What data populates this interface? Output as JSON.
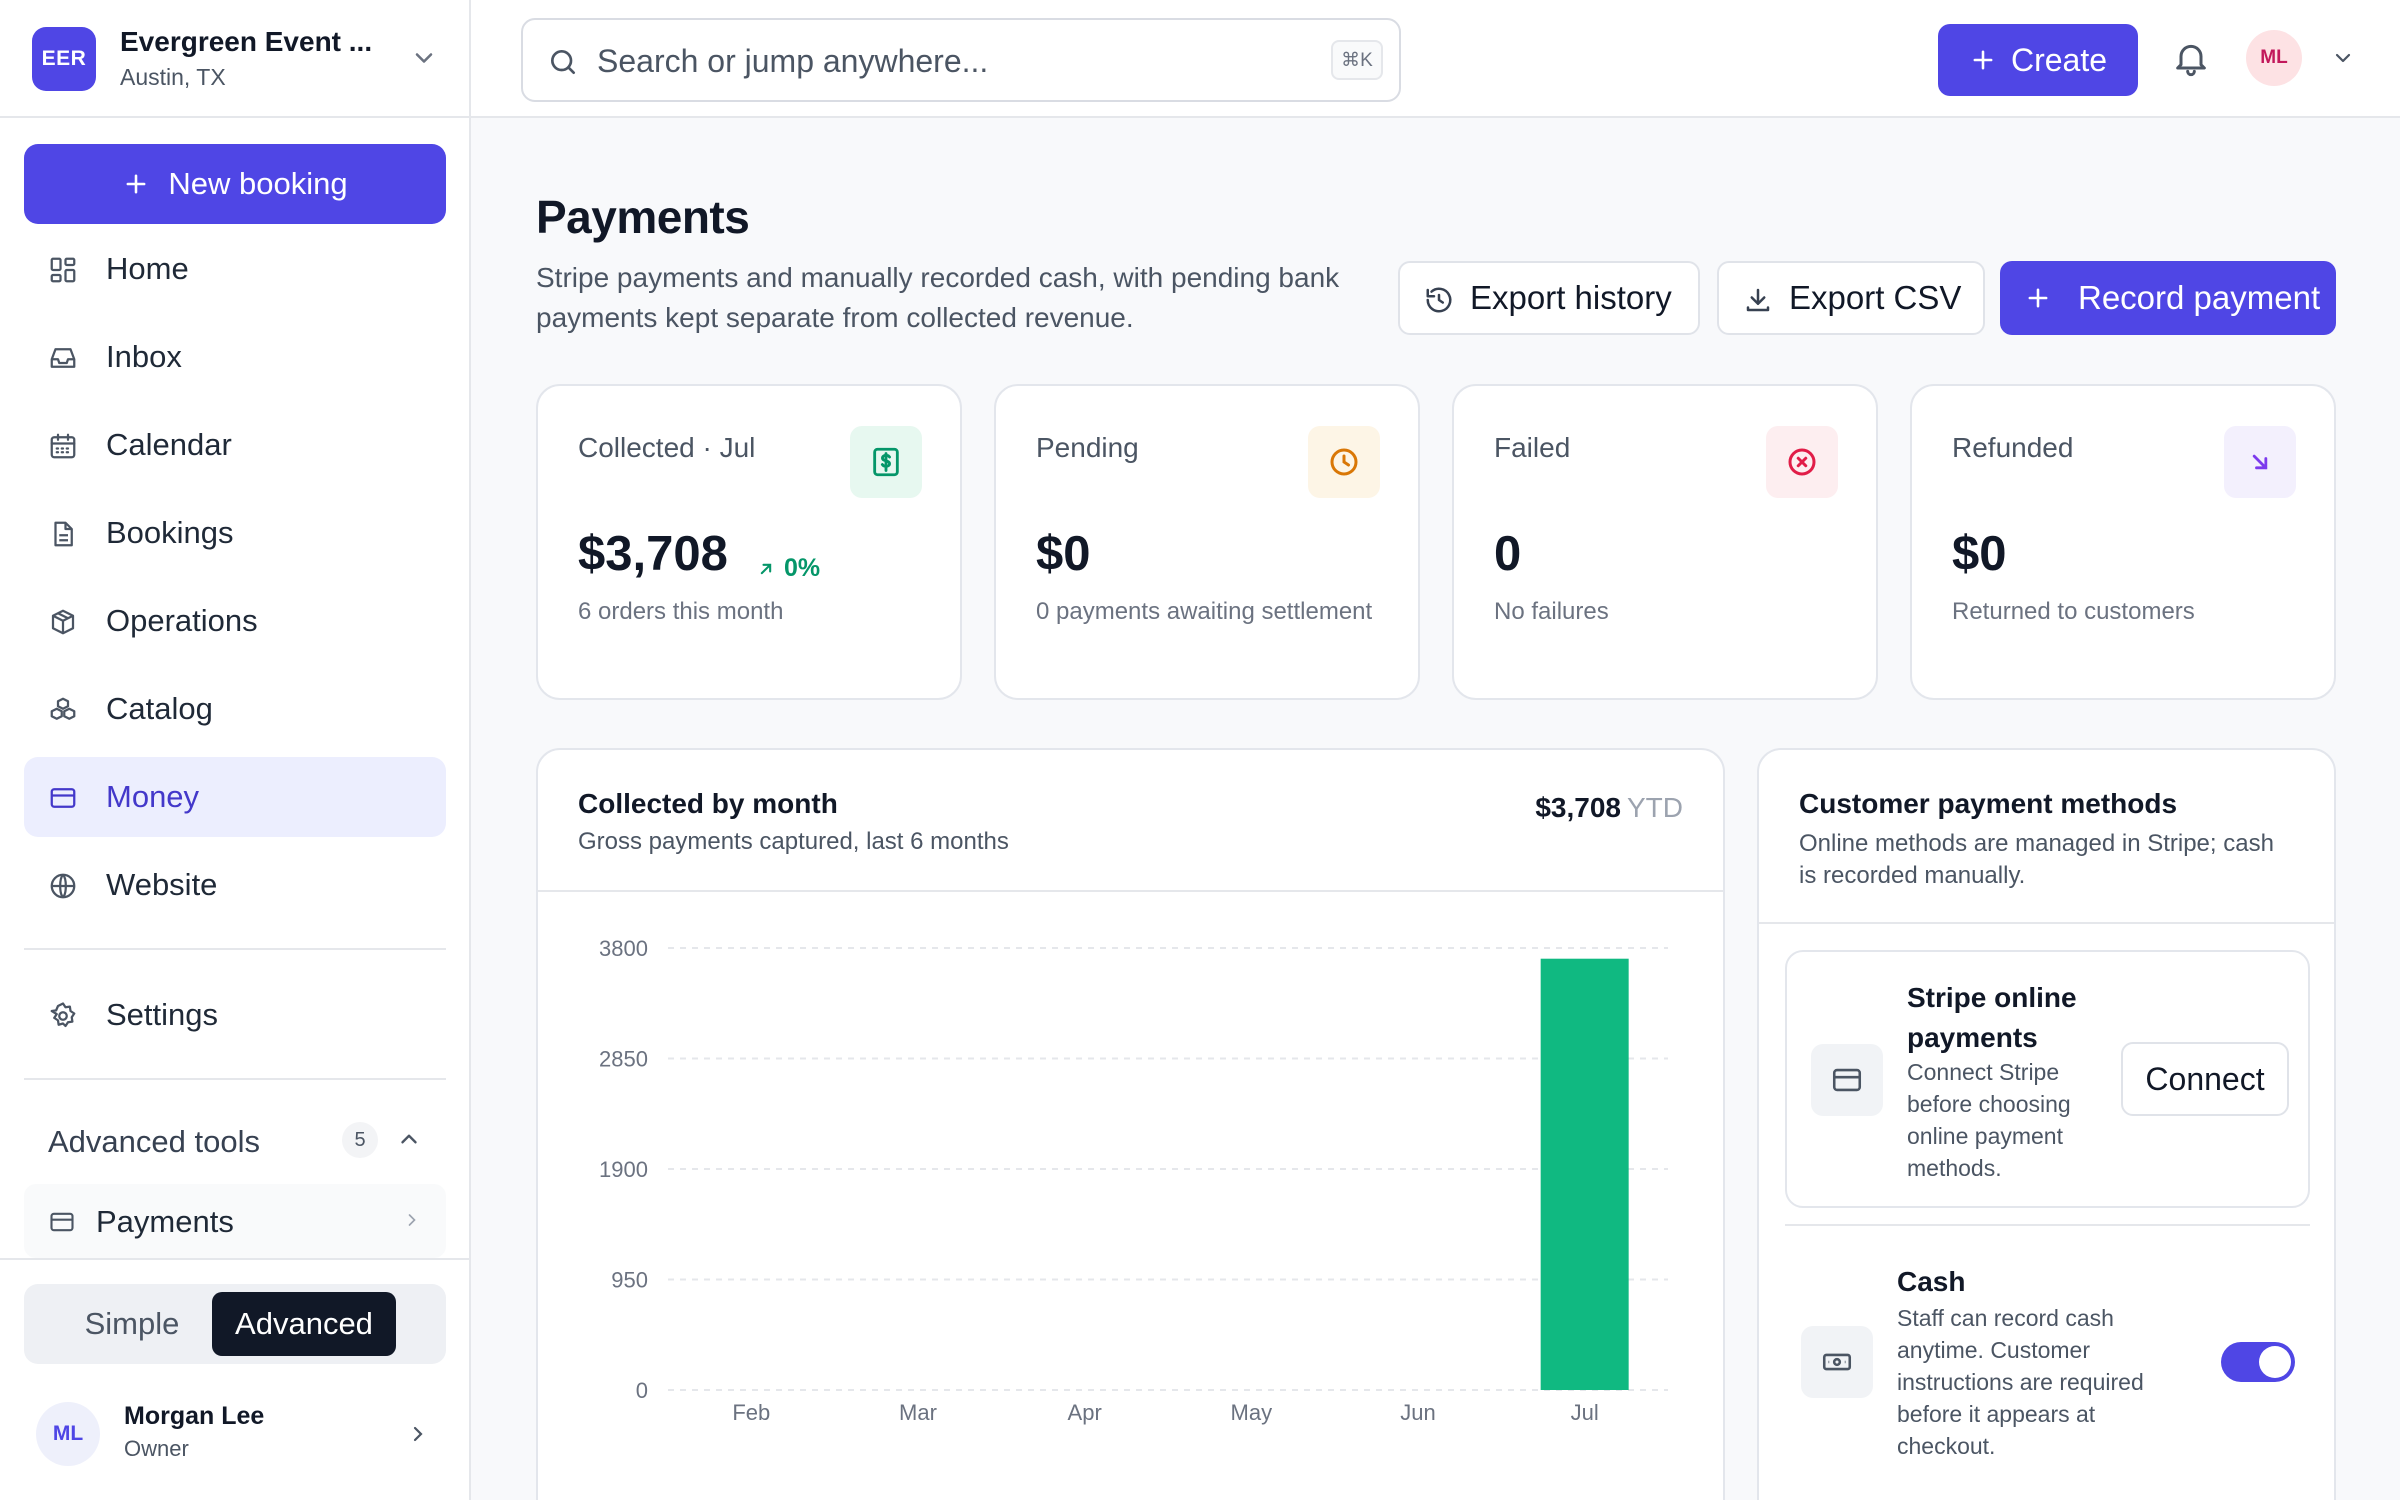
{
  "org": {
    "badge": "EER",
    "name": "Evergreen Event ...",
    "location": "Austin, TX"
  },
  "sidebar": {
    "new_booking": "New booking",
    "items": [
      {
        "label": "Home",
        "icon": "grid-icon"
      },
      {
        "label": "Inbox",
        "icon": "inbox-icon"
      },
      {
        "label": "Calendar",
        "icon": "calendar-icon"
      },
      {
        "label": "Bookings",
        "icon": "document-icon"
      },
      {
        "label": "Operations",
        "icon": "cube-icon"
      },
      {
        "label": "Catalog",
        "icon": "boxes-icon"
      },
      {
        "label": "Money",
        "icon": "credit-card-icon",
        "active": true
      },
      {
        "label": "Website",
        "icon": "globe-icon"
      },
      {
        "label": "Settings",
        "icon": "gear-icon"
      }
    ],
    "advanced_tools": {
      "label": "Advanced tools",
      "count": "5",
      "expanded": true
    },
    "advanced_items": [
      {
        "label": "Payments",
        "icon": "credit-card-icon"
      }
    ],
    "mode": {
      "simple": "Simple",
      "advanced": "Advanced",
      "selected": "Advanced"
    },
    "user": {
      "initials": "ML",
      "name": "Morgan Lee",
      "role": "Owner"
    }
  },
  "topbar": {
    "search_placeholder": "Search or jump anywhere...",
    "shortcut": "⌘K",
    "create": "Create",
    "avatar": "ML"
  },
  "page": {
    "title": "Payments",
    "subtitle": "Stripe payments and manually recorded cash, with pending bank payments kept separate from collected revenue.",
    "actions": {
      "export_history": "Export history",
      "export_csv": "Export CSV",
      "record_payment": "Record payment"
    }
  },
  "stats": [
    {
      "label": "Collected · Jul",
      "value": "$3,708",
      "delta": "0%",
      "note": "6 orders this month",
      "icon": "dollar-icon",
      "color": "#059669",
      "bg": "#e7f8f0"
    },
    {
      "label": "Pending",
      "value": "$0",
      "note": "0 payments awaiting settlement",
      "icon": "clock-icon",
      "color": "#d97706",
      "bg": "#fdf5e6"
    },
    {
      "label": "Failed",
      "value": "0",
      "note": "No failures",
      "icon": "x-circle-icon",
      "color": "#e11d48",
      "bg": "#fdeef0"
    },
    {
      "label": "Refunded",
      "value": "$0",
      "note": "Returned to customers",
      "icon": "arrow-down-right-icon",
      "color": "#7c3aed",
      "bg": "#f3f0fd"
    }
  ],
  "chart_panel": {
    "title": "Collected by month",
    "subtitle": "Gross payments captured, last 6 months",
    "total": "$3,708",
    "total_suffix": "YTD"
  },
  "chart_data": {
    "type": "bar",
    "categories": [
      "Feb",
      "Mar",
      "Apr",
      "May",
      "Jun",
      "Jul"
    ],
    "values": [
      0,
      0,
      0,
      0,
      0,
      3708
    ],
    "yticks": [
      0,
      950,
      1900,
      2850,
      3800
    ],
    "ylim": [
      0,
      3800
    ],
    "grid": true,
    "bar_color": "#10b981"
  },
  "methods": {
    "title": "Customer payment methods",
    "subtitle": "Online methods are managed in Stripe; cash is recorded manually.",
    "stripe": {
      "name": "Stripe online payments",
      "desc": "Connect Stripe before choosing online payment methods.",
      "action": "Connect"
    },
    "cash": {
      "name": "Cash",
      "desc": "Staff can record cash anytime. Customer instructions are required before it appears at checkout.",
      "enabled": true
    }
  }
}
